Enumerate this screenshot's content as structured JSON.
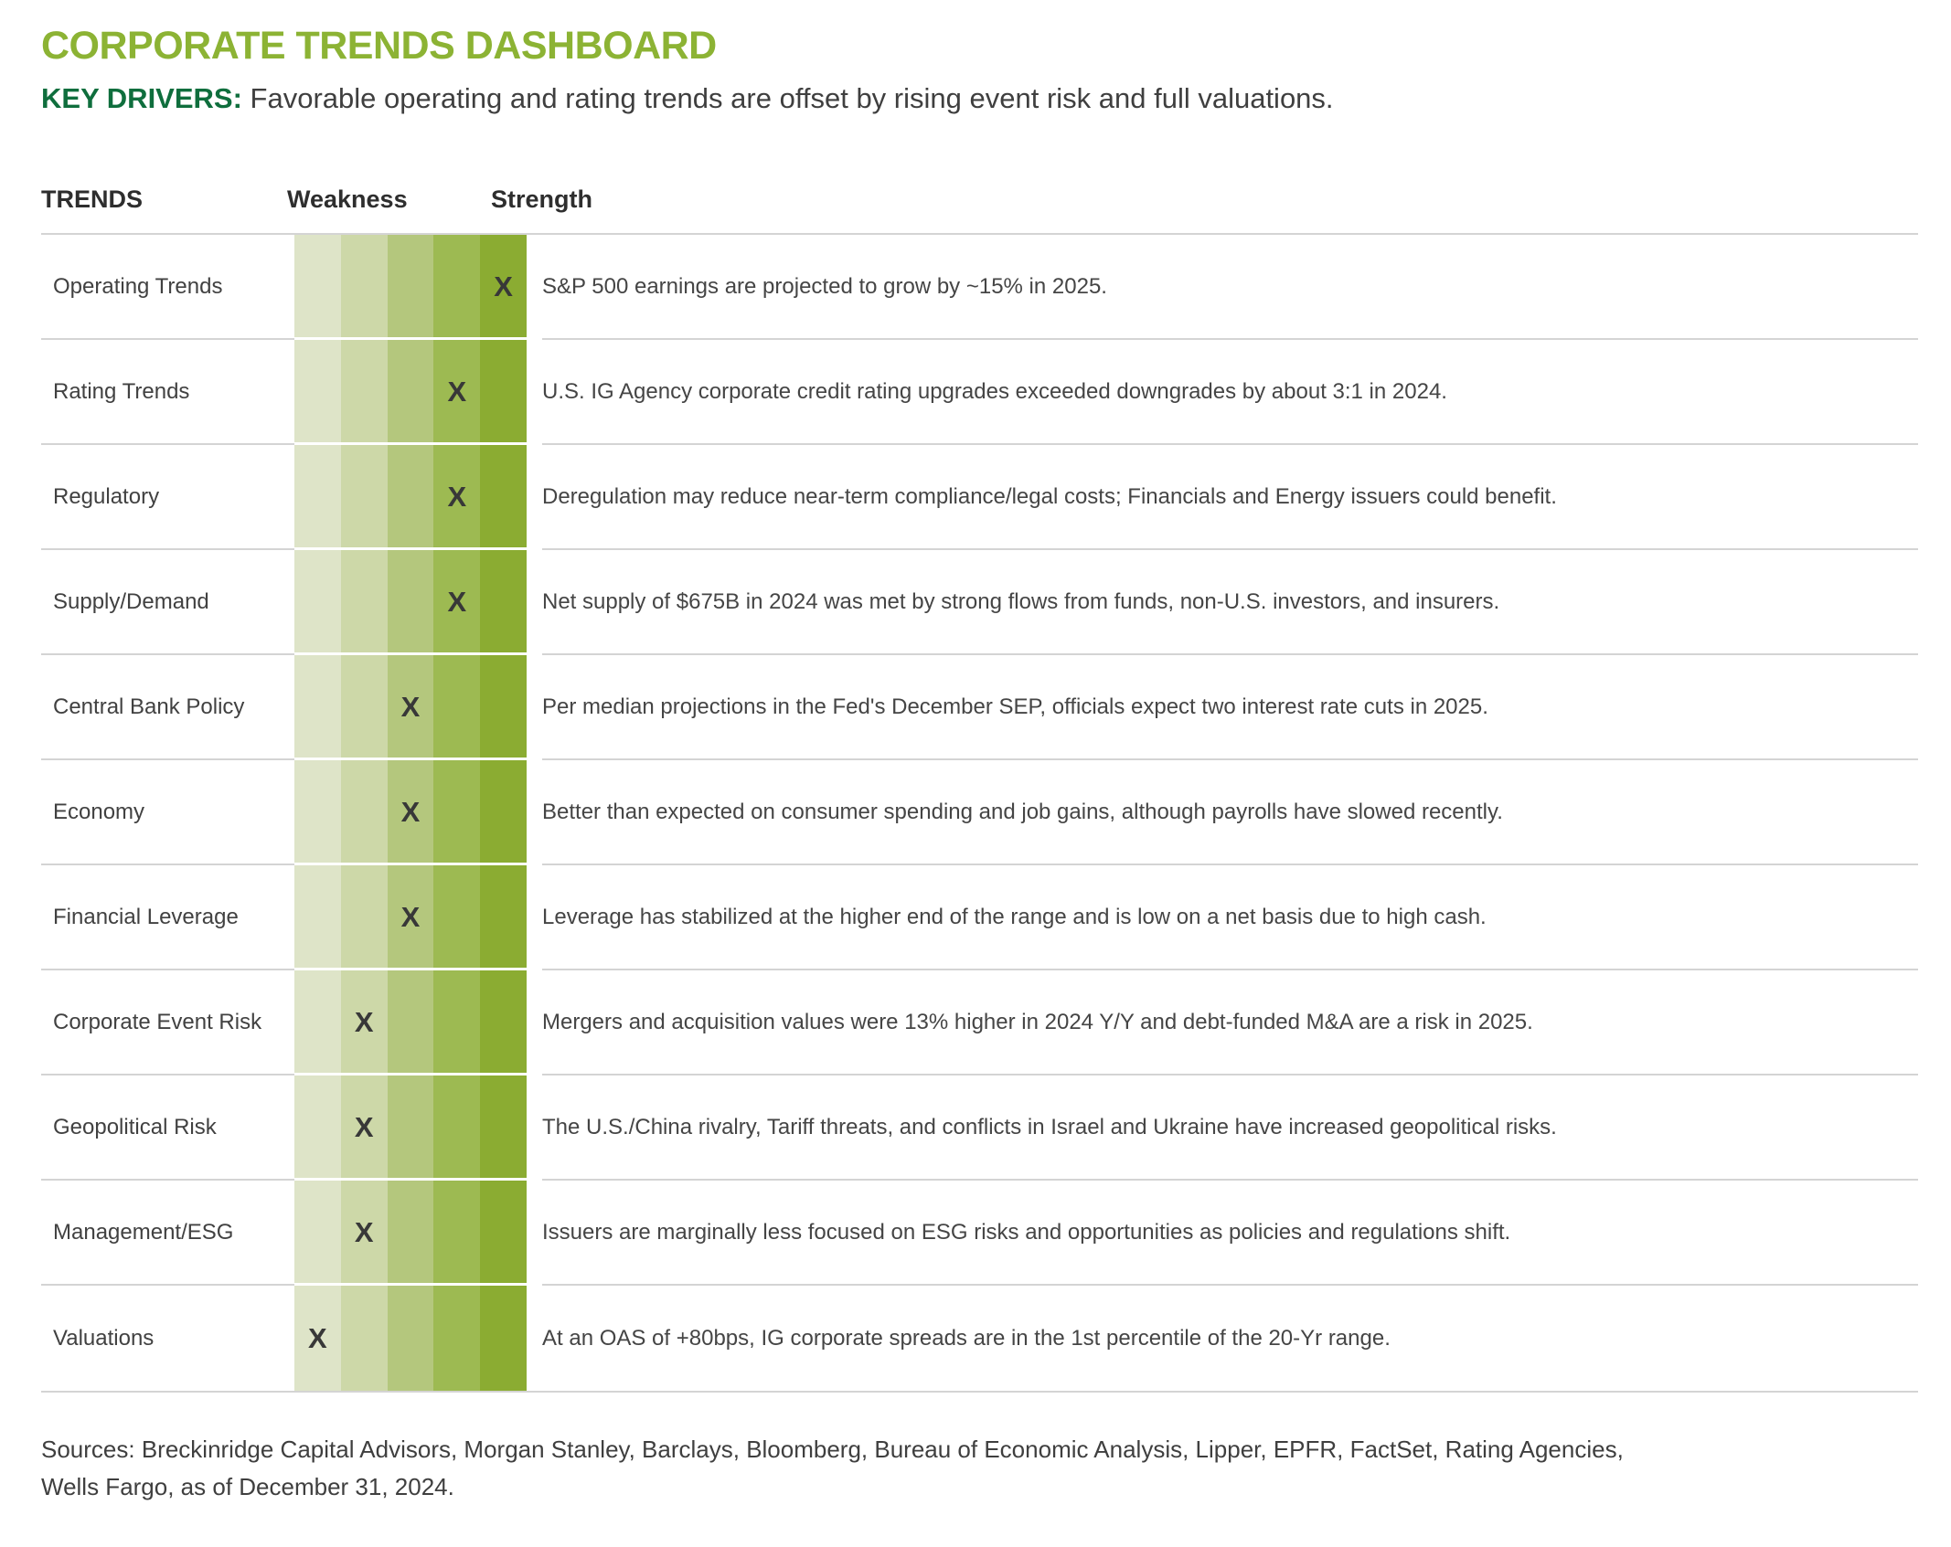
{
  "header": {
    "title": "CORPORATE TRENDS DASHBOARD",
    "key_drivers_label": "KEY DRIVERS:",
    "key_drivers_text": "Favorable operating and rating trends are offset by rising event risk and full valuations."
  },
  "table": {
    "columns": {
      "trends": "TRENDS",
      "weakness": "Weakness",
      "strength": "Strength"
    },
    "scale_colors": [
      "#dee4c8",
      "#cdd8a8",
      "#b4c77d",
      "#9dba52",
      "#8bac32"
    ],
    "marker": "X",
    "rows": [
      {
        "label": "Operating Trends",
        "position": 5,
        "description": "S&P 500 earnings are projected to grow by ~15% in 2025."
      },
      {
        "label": "Rating Trends",
        "position": 4,
        "description": "U.S. IG Agency corporate credit rating upgrades exceeded downgrades by about 3:1 in 2024."
      },
      {
        "label": "Regulatory",
        "position": 4,
        "description": "Deregulation may reduce near-term compliance/legal costs; Financials and Energy issuers could benefit."
      },
      {
        "label": "Supply/Demand",
        "position": 4,
        "description": "Net supply of $675B in 2024 was met by strong flows from funds, non-U.S. investors, and insurers."
      },
      {
        "label": "Central Bank Policy",
        "position": 3,
        "description": "Per median projections in the Fed's December SEP, officials expect two interest rate cuts in 2025."
      },
      {
        "label": "Economy",
        "position": 3,
        "description": "Better than expected on consumer spending and job gains, although payrolls have slowed recently."
      },
      {
        "label": "Financial Leverage",
        "position": 3,
        "description": "Leverage has stabilized at the higher end of the range and is low on a net basis due to high cash."
      },
      {
        "label": "Corporate Event Risk",
        "position": 2,
        "description": "Mergers and acquisition values were 13% higher in 2024 Y/Y and debt-funded M&A are a risk in 2025."
      },
      {
        "label": "Geopolitical Risk",
        "position": 2,
        "description": "The U.S./China rivalry, Tariff threats, and conflicts in Israel and Ukraine have increased geopolitical risks."
      },
      {
        "label": "Management/ESG",
        "position": 2,
        "description": "Issuers are marginally less focused on ESG risks and opportunities as policies and regulations shift."
      },
      {
        "label": "Valuations",
        "position": 1,
        "description": "At an OAS of +80bps, IG corporate spreads are in the 1st percentile of the 20-Yr range."
      }
    ]
  },
  "footer": {
    "lines": [
      "Sources: Breckinridge Capital Advisors, Morgan Stanley, Barclays, Bloomberg, Bureau of Economic Analysis, Lipper, EPFR, FactSet, Rating Agencies,",
      "Wells Fargo, as of December 31, 2024."
    ]
  },
  "colors": {
    "title_green": "#8cb334",
    "key_drivers_green": "#0f6e3d",
    "heading_text": "#2e2e2e",
    "body_text": "#454545",
    "marker": "#383838",
    "divider": "#d4d4d4"
  },
  "chart_data": {
    "type": "heatmap",
    "title": "CORPORATE TRENDS DASHBOARD",
    "subtitle": "KEY DRIVERS: Favorable operating and rating trends are offset by rising event risk and full valuations.",
    "scale": {
      "levels": 5,
      "min_label": "Weakness",
      "max_label": "Strength"
    },
    "categories": [
      "Operating Trends",
      "Rating Trends",
      "Regulatory",
      "Supply/Demand",
      "Central Bank Policy",
      "Economy",
      "Financial Leverage",
      "Corporate Event Risk",
      "Geopolitical Risk",
      "Management/ESG",
      "Valuations"
    ],
    "values": [
      5,
      4,
      4,
      4,
      3,
      3,
      3,
      2,
      2,
      2,
      1
    ],
    "legend_position": "none",
    "grid": "row-dividers"
  }
}
